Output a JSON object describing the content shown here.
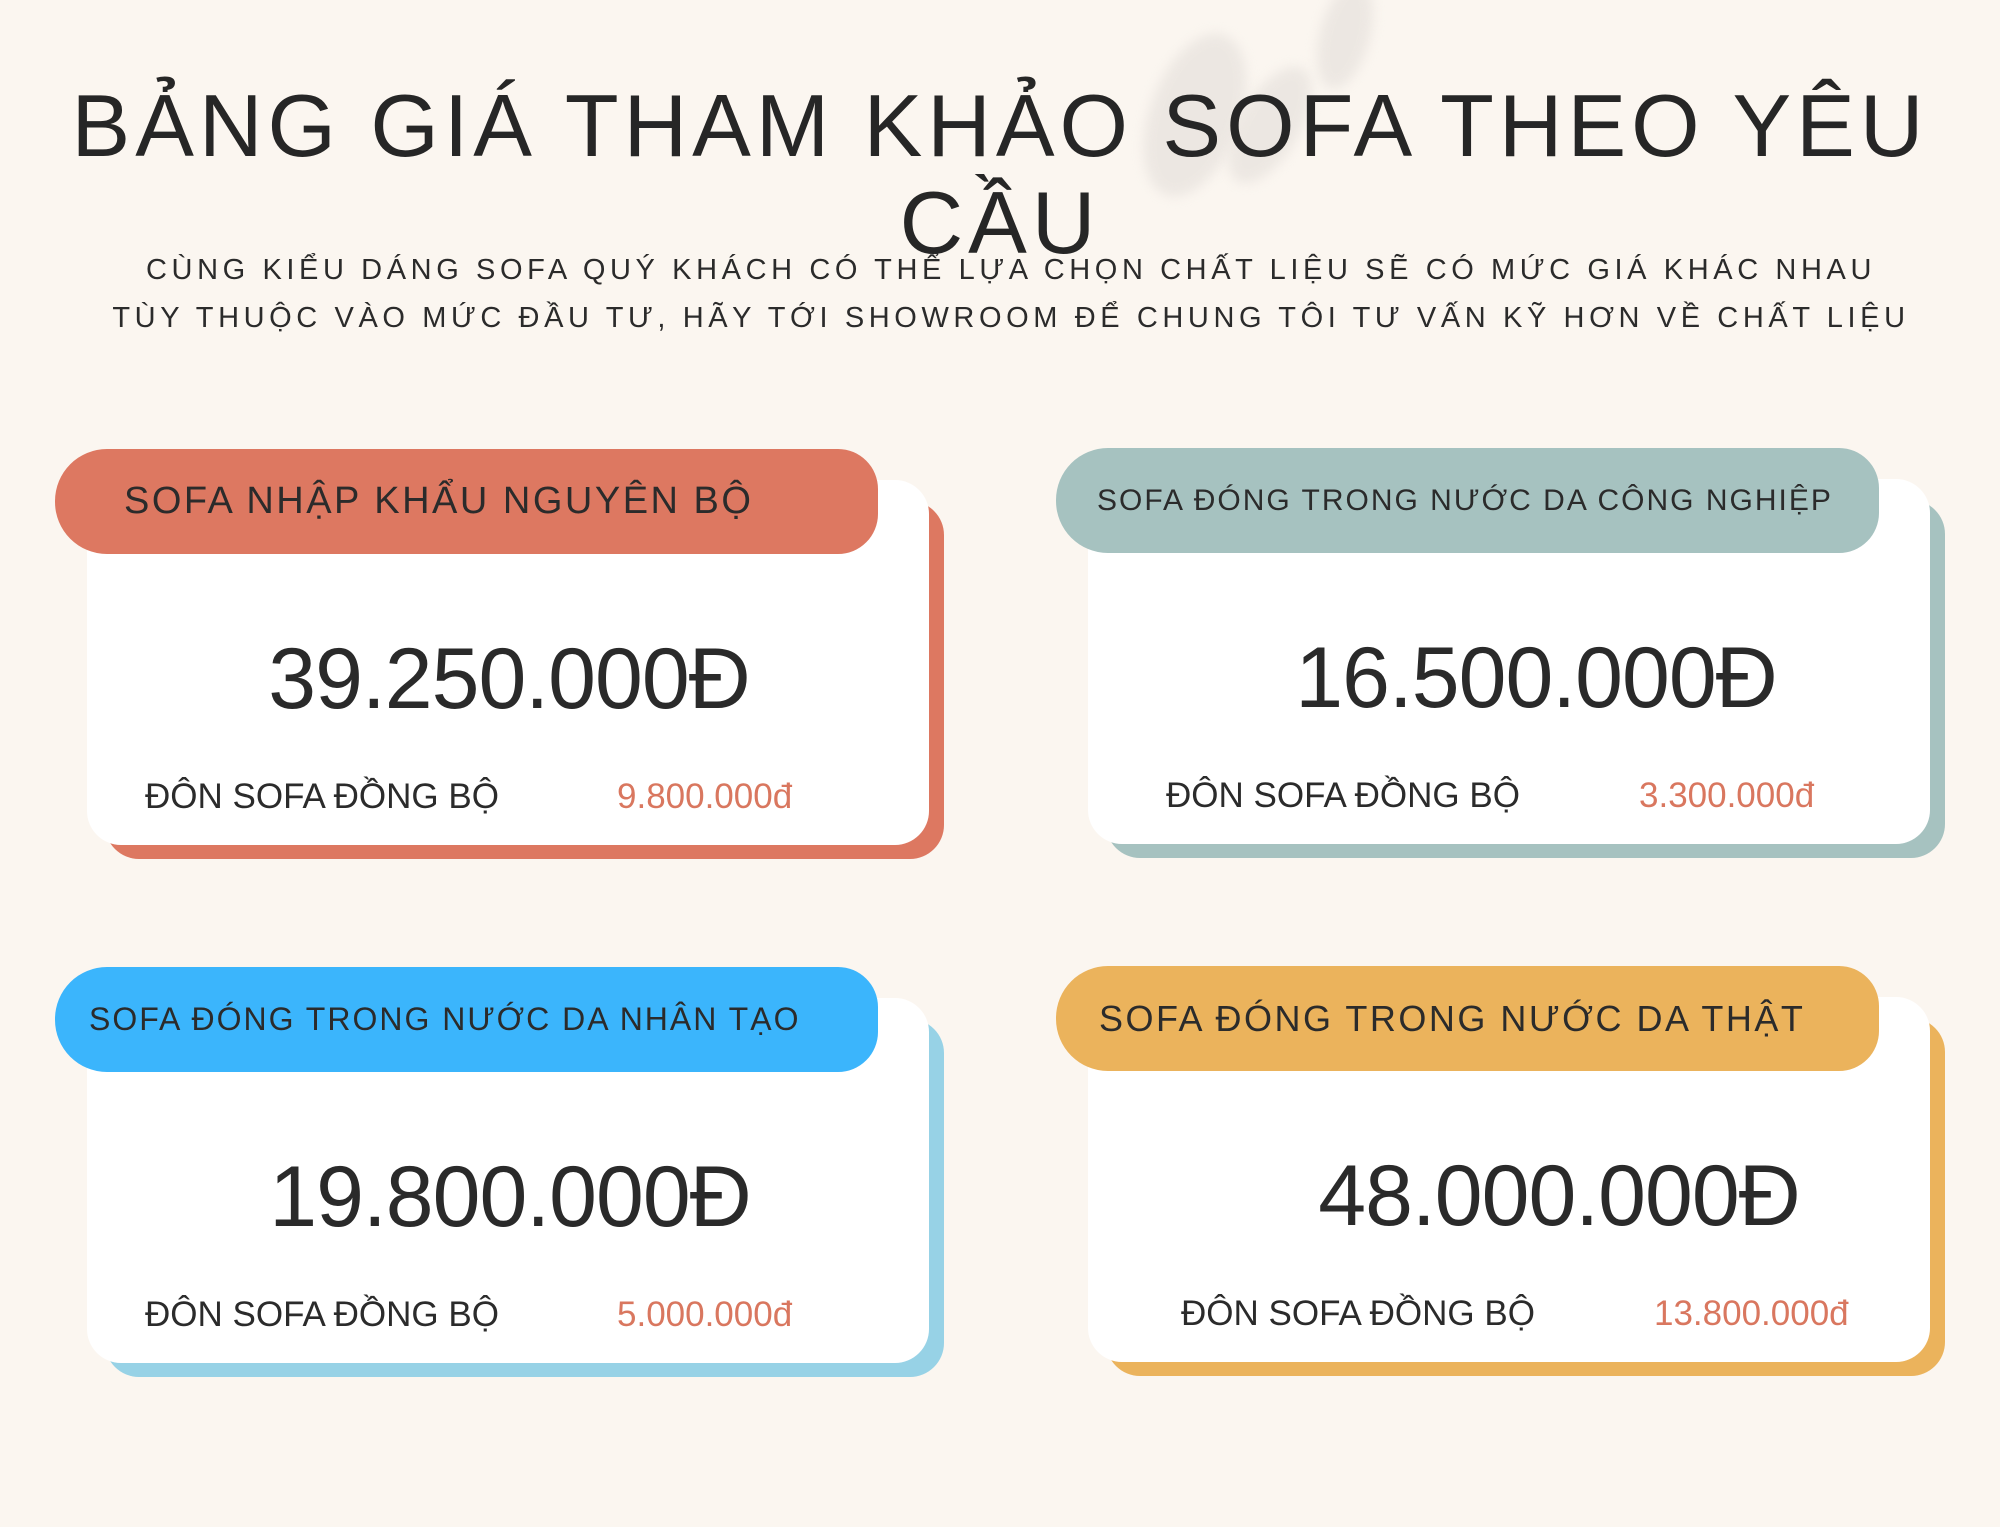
{
  "title": "BẢNG GIÁ THAM KHẢO SOFA THEO YÊU CẦU",
  "subtitle_lines": [
    "CÙNG KIỂU DÁNG SOFA QUÝ KHÁCH CÓ THỂ LỰA CHỌN CHẤT LIỆU SẼ CÓ MỨC GIÁ KHÁC NHAU",
    "TÙY THUỘC VÀO MỨC ĐẦU TƯ, HÃY TỚI SHOWROOM ĐỂ CHUNG TÔI TƯ VẤN KỸ HƠN VỀ CHẤT LIỆU"
  ],
  "cards": [
    {
      "name": "SOFA NHẬP KHẨU NGUYÊN BỘ",
      "price": "39.250.000Đ",
      "ottoman_label": "ĐÔN SOFA ĐỒNG BỘ",
      "ottoman_price": "9.800.000đ",
      "pill_color": "#dd7861",
      "shadow_color": "#dd7861"
    },
    {
      "name": "SOFA ĐÓNG TRONG NƯỚC DA CÔNG NGHIỆP",
      "price": "16.500.000Đ",
      "ottoman_label": "ĐÔN SOFA ĐỒNG BỘ",
      "ottoman_price": "3.300.000đ",
      "pill_color": "#a6c2c0",
      "shadow_color": "#a6c2c0"
    },
    {
      "name": "SOFA ĐÓNG TRONG NƯỚC DA NHÂN TẠO",
      "price": "19.800.000Đ",
      "ottoman_label": "ĐÔN SOFA ĐỒNG BỘ",
      "ottoman_price": "5.000.000đ",
      "pill_color": "#3bb5fc",
      "shadow_color": "#97d2e6"
    },
    {
      "name": "SOFA ĐÓNG TRONG NƯỚC DA THẬT",
      "price": "48.000.000Đ",
      "ottoman_label": "ĐÔN SOFA ĐỒNG BỘ",
      "ottoman_price": "13.800.000đ",
      "pill_color": "#ebb35c",
      "shadow_color": "#ebb35c"
    }
  ]
}
